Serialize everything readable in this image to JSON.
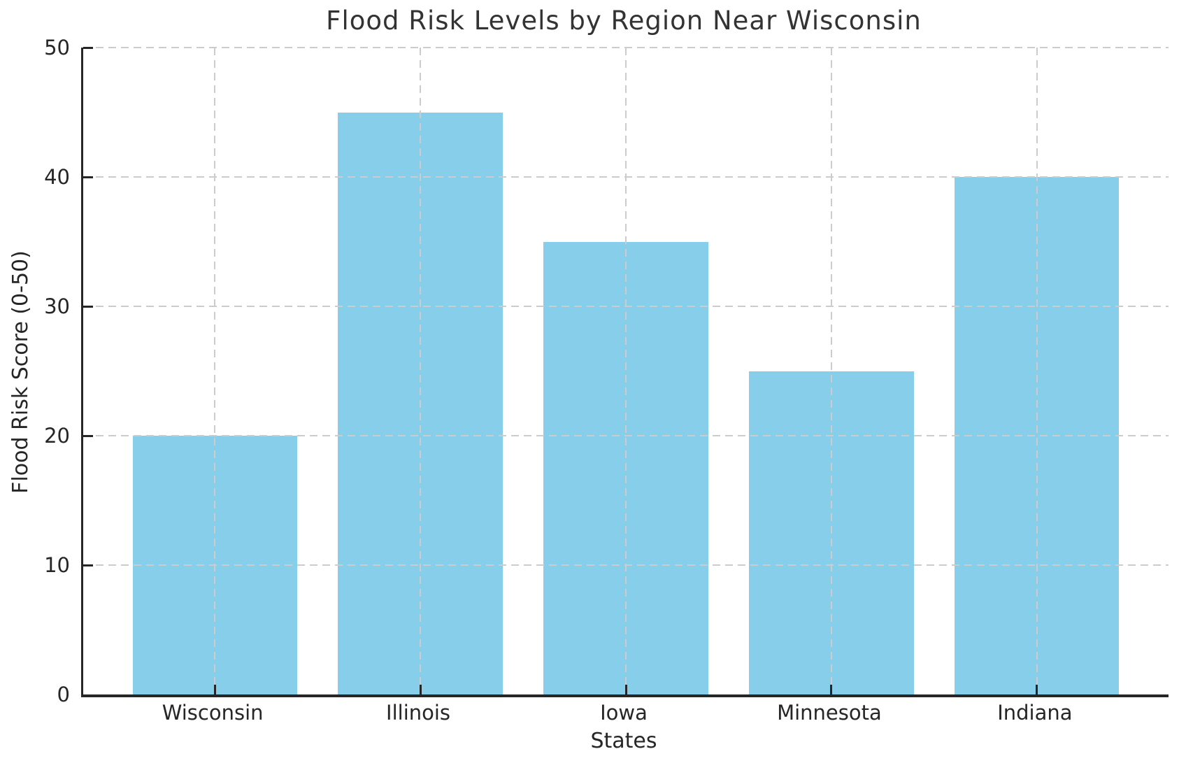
{
  "chart_data": {
    "type": "bar",
    "title": "Flood Risk Levels by Region Near Wisconsin",
    "xlabel": "States",
    "ylabel": "Flood Risk Score (0-50)",
    "categories": [
      "Wisconsin",
      "Illinois",
      "Iowa",
      "Minnesota",
      "Indiana"
    ],
    "values": [
      20,
      45,
      35,
      25,
      40
    ],
    "ylim": [
      0,
      50
    ],
    "yticks": [
      0,
      10,
      20,
      30,
      40,
      50
    ],
    "bar_color": "#87CEEB",
    "grid_color": "#cccccc",
    "axis_color": "#262626",
    "text_color": "#262626",
    "title_color": "#333333",
    "grid_style": "dashed",
    "grid_above_bars": true,
    "legend_position": "none",
    "bar_width_fraction": 0.8
  }
}
